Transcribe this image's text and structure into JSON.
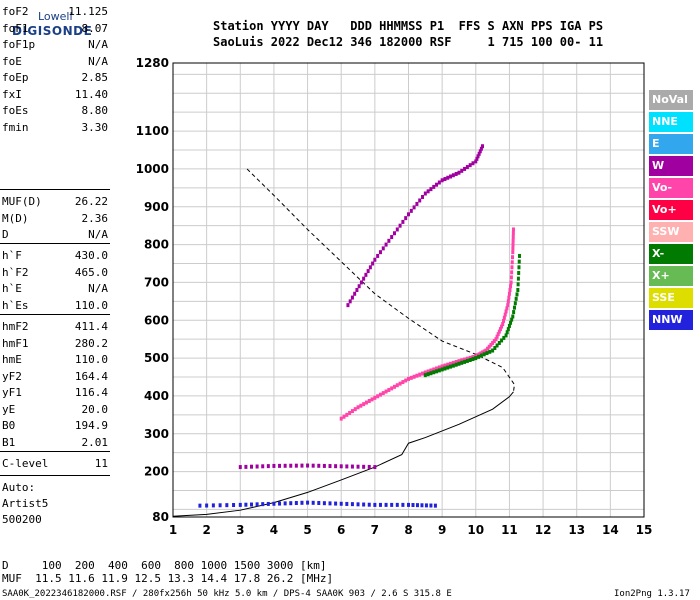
{
  "logo": {
    "line1": "Lowell",
    "line2": "DIGISONDE"
  },
  "header": {
    "row1": "Station YYYY DAY   DDD HHMMSS P1  FFS S AXN PPS IGA PS",
    "row2": "SaoLuis 2022 Dec12 346 182000 RSF     1 715 100 00- 11"
  },
  "params_group1": [
    {
      "k": "foF2",
      "v": "11.125"
    },
    {
      "k": "foF1",
      "v": "8.07"
    },
    {
      "k": "foF1p",
      "v": "N/A"
    },
    {
      "k": "foE",
      "v": "N/A"
    },
    {
      "k": "foEp",
      "v": "2.85"
    },
    {
      "k": "fxI",
      "v": "11.40"
    },
    {
      "k": "foEs",
      "v": "8.80"
    },
    {
      "k": "fmin",
      "v": "3.30"
    }
  ],
  "params_group2": [
    {
      "k": "MUF(D)",
      "v": "26.22"
    },
    {
      "k": "M(D)",
      "v": "2.36"
    },
    {
      "k": "D",
      "v": "N/A"
    }
  ],
  "params_group3": [
    {
      "k": "h`F",
      "v": "430.0"
    },
    {
      "k": "h`F2",
      "v": "465.0"
    },
    {
      "k": "h`E",
      "v": "N/A"
    },
    {
      "k": "h`Es",
      "v": "110.0"
    }
  ],
  "params_group4": [
    {
      "k": "hmF2",
      "v": "411.4"
    },
    {
      "k": "hmF1",
      "v": "280.2"
    },
    {
      "k": "hmE",
      "v": "110.0"
    },
    {
      "k": "yF2",
      "v": "164.4"
    },
    {
      "k": "yF1",
      "v": "116.4"
    },
    {
      "k": "yE",
      "v": "20.0"
    },
    {
      "k": "B0",
      "v": "194.9"
    },
    {
      "k": "B1",
      "v": "2.01"
    }
  ],
  "params_group5": [
    {
      "k": "C-level",
      "v": "11"
    }
  ],
  "auto": {
    "line1": "Auto:",
    "line2": "Artist5",
    "line3": "500200"
  },
  "footer": {
    "d_row": "D     100  200  400  600  800 1000 1500 3000 [km]",
    "muf_row": "MUF  11.5 11.6 11.9 12.5 13.3 14.4 17.8 26.2 [MHz]",
    "file_line": "SAA0K_2022346182000.RSF / 280fx256h 50 kHz 5.0 km / DPS-4 SAA0K 903 / 2.6 S 315.8 E",
    "version": "Ion2Png 1.3.17"
  },
  "legend": [
    {
      "label": "NoVal",
      "color": "#aaaaaa"
    },
    {
      "label": "NNE",
      "color": "#00e0ff"
    },
    {
      "label": "E",
      "color": "#33a7ee"
    },
    {
      "label": "W",
      "color": "#a000a0"
    },
    {
      "label": "Vo-",
      "color": "#ff44aa"
    },
    {
      "label": "Vo+",
      "color": "#ff0044"
    },
    {
      "label": "SSW",
      "color": "#ffb0b0"
    },
    {
      "label": "X-",
      "color": "#007a00"
    },
    {
      "label": "X+",
      "color": "#66bb55"
    },
    {
      "label": "SSE",
      "color": "#dddd00"
    },
    {
      "label": "NNW",
      "color": "#2222dd"
    }
  ],
  "chart_data": {
    "type": "scatter",
    "xlim": [
      1,
      15
    ],
    "ylim": [
      80,
      1280
    ],
    "x_ticks": [
      1,
      2,
      3,
      4,
      5,
      6,
      7,
      8,
      9,
      10,
      11,
      12,
      13,
      14,
      15
    ],
    "y_ticks": [
      80,
      200,
      300,
      400,
      500,
      600,
      700,
      800,
      900,
      1000,
      1100,
      1280
    ],
    "grid": true,
    "legend_position": "right",
    "series": [
      {
        "name": "O-trace (F2)",
        "color": "#ff44aa",
        "points": [
          [
            6.0,
            340
          ],
          [
            6.5,
            370
          ],
          [
            7.0,
            395
          ],
          [
            7.5,
            420
          ],
          [
            8.0,
            445
          ],
          [
            8.5,
            462
          ],
          [
            9.0,
            478
          ],
          [
            9.5,
            492
          ],
          [
            10.0,
            505
          ],
          [
            10.3,
            520
          ],
          [
            10.6,
            550
          ],
          [
            10.8,
            590
          ],
          [
            10.95,
            640
          ],
          [
            11.05,
            700
          ],
          [
            11.1,
            780
          ],
          [
            11.12,
            840
          ]
        ]
      },
      {
        "name": "X-trace (F2)",
        "color": "#007a00",
        "points": [
          [
            8.5,
            455
          ],
          [
            9.0,
            470
          ],
          [
            9.5,
            485
          ],
          [
            10.0,
            500
          ],
          [
            10.5,
            520
          ],
          [
            10.9,
            560
          ],
          [
            11.1,
            610
          ],
          [
            11.25,
            680
          ],
          [
            11.3,
            770
          ]
        ]
      },
      {
        "name": "Second-hop trace",
        "color": "#a000a0",
        "points": [
          [
            6.2,
            640
          ],
          [
            6.6,
            700
          ],
          [
            7.0,
            760
          ],
          [
            7.5,
            820
          ],
          [
            8.0,
            880
          ],
          [
            8.5,
            935
          ],
          [
            9.0,
            970
          ],
          [
            9.5,
            990
          ],
          [
            10.0,
            1020
          ],
          [
            10.2,
            1060
          ]
        ]
      },
      {
        "name": "Es layer",
        "color": "#2222dd",
        "points": [
          [
            1.8,
            110
          ],
          [
            3,
            112
          ],
          [
            4,
            115
          ],
          [
            5,
            118
          ],
          [
            6,
            115
          ],
          [
            7,
            112
          ],
          [
            8,
            112
          ],
          [
            8.8,
            110
          ]
        ]
      },
      {
        "name": "Es 2nd hop",
        "color": "#a000a0",
        "points": [
          [
            3,
            212
          ],
          [
            4,
            215
          ],
          [
            5,
            216
          ],
          [
            6,
            214
          ],
          [
            7,
            212
          ]
        ]
      }
    ],
    "profile_line": {
      "points": [
        [
          1,
          82
        ],
        [
          2,
          87
        ],
        [
          3,
          98
        ],
        [
          4,
          118
        ],
        [
          5,
          145
        ],
        [
          6,
          178
        ],
        [
          7,
          212
        ],
        [
          7.8,
          245
        ],
        [
          8.0,
          275
        ],
        [
          8.5,
          290
        ],
        [
          9.5,
          325
        ],
        [
          10.5,
          365
        ],
        [
          11.0,
          398
        ],
        [
          11.12,
          411
        ]
      ]
    },
    "dashed_line": {
      "points": [
        [
          3.2,
          1000
        ],
        [
          4,
          930
        ],
        [
          5,
          840
        ],
        [
          6,
          755
        ],
        [
          7,
          670
        ],
        [
          8,
          605
        ],
        [
          9,
          545
        ],
        [
          10,
          510
        ],
        [
          10.8,
          475
        ],
        [
          11.15,
          430
        ],
        [
          11.12,
          411
        ]
      ]
    }
  }
}
